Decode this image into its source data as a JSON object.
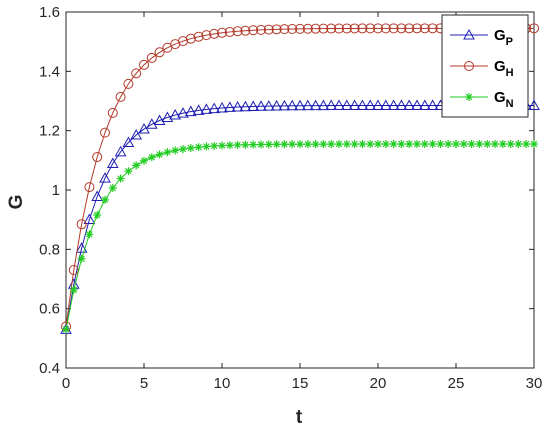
{
  "chart_data": {
    "type": "line",
    "xlabel": "t",
    "ylabel": "G",
    "xlim": [
      0,
      30
    ],
    "ylim": [
      0.4,
      1.6
    ],
    "xticks": [
      0,
      5,
      10,
      15,
      20,
      25,
      30
    ],
    "yticks": [
      0.4,
      0.6,
      0.8,
      1.0,
      1.2,
      1.4,
      1.6
    ],
    "ytick_labels": [
      "0.4",
      "0.6",
      "0.8",
      "1",
      "1.2",
      "1.4",
      "1.6"
    ],
    "grid": false,
    "legend_position": "top-right",
    "series": [
      {
        "name": "G",
        "subscript": "P",
        "color": "#1f1fb4",
        "marker": "triangle",
        "y0": 0.53,
        "yinf": 1.285,
        "rate": 0.45
      },
      {
        "name": "G",
        "subscript": "H",
        "color": "#b33a2a",
        "marker": "circle",
        "y0": 0.54,
        "yinf": 1.545,
        "rate": 0.42
      },
      {
        "name": "G",
        "subscript": "N",
        "color": "#22cc22",
        "marker": "asterisk",
        "y0": 0.53,
        "yinf": 1.155,
        "rate": 0.48
      }
    ],
    "x": [
      0,
      0.5,
      1,
      1.5,
      2,
      2.5,
      3,
      3.5,
      4,
      4.5,
      5,
      5.5,
      6,
      6.5,
      7,
      7.5,
      8,
      8.5,
      9,
      9.5,
      10,
      10.5,
      11,
      11.5,
      12,
      12.5,
      13,
      13.5,
      14,
      14.5,
      15,
      15.5,
      16,
      16.5,
      17,
      17.5,
      18,
      18.5,
      19,
      19.5,
      20,
      20.5,
      21,
      21.5,
      22,
      22.5,
      23,
      23.5,
      24,
      24.5,
      25,
      25.5,
      26,
      26.5,
      27,
      27.5,
      28,
      28.5,
      29,
      29.5,
      30
    ]
  }
}
